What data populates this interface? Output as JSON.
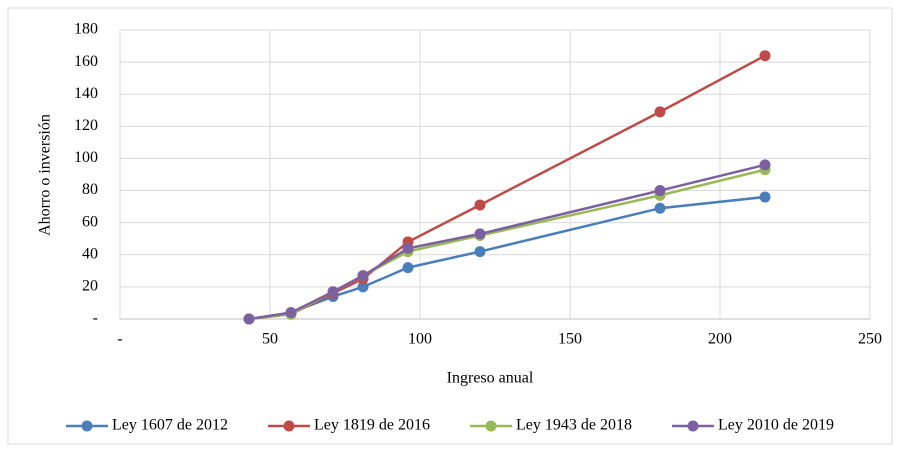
{
  "chart_data": {
    "type": "line",
    "x_label": "Ingreso anual",
    "y_label": "Ahorro o inversión",
    "x": [
      43,
      57,
      71,
      81,
      96,
      120,
      180,
      215
    ],
    "series": [
      {
        "name": "Ley 1607 de 2012",
        "color": "#4a7ebb",
        "values": [
          0,
          4,
          14,
          20,
          32,
          42,
          69,
          76
        ]
      },
      {
        "name": "Ley 1819 de 2016",
        "color": "#be4b48",
        "values": [
          0,
          3,
          16,
          25,
          48,
          71,
          129,
          164
        ]
      },
      {
        "name": "Ley 1943 de 2018",
        "color": "#98b954",
        "values": [
          0,
          3,
          17,
          27,
          42,
          52,
          77,
          93
        ]
      },
      {
        "name": "Ley 2010 de 2019",
        "color": "#7d60a0",
        "values": [
          0,
          4,
          17,
          27,
          44,
          53,
          80,
          96
        ]
      }
    ],
    "xlim": [
      0,
      250
    ],
    "xticks": [
      {
        "value": 0,
        "label": "-"
      },
      50,
      100,
      150,
      200,
      250
    ],
    "ylim": [
      0,
      180
    ],
    "yticks": [
      {
        "value": 0,
        "label": "-"
      },
      20,
      40,
      60,
      80,
      100,
      120,
      140,
      160,
      180
    ],
    "grid": true,
    "legend": "bottom"
  }
}
